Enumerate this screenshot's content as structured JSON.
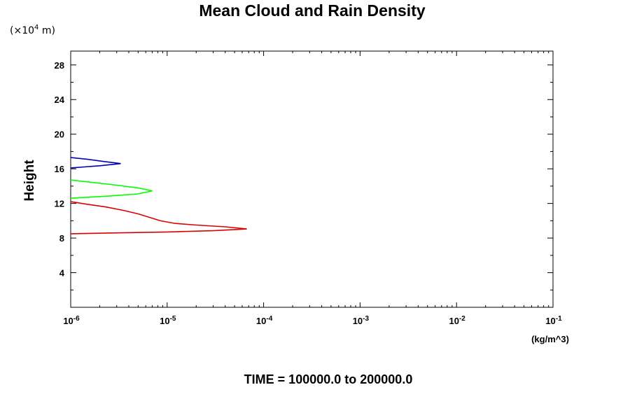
{
  "chart_data": {
    "type": "line",
    "title": "Mean Cloud and Rain Density",
    "ylabel": "Height",
    "y_unit_base": "(×10",
    "y_unit_exp": "4",
    "y_unit_tail": " m)",
    "x_unit": "(kg/m^3)",
    "footer": "TIME = 100000.0 to 200000.0",
    "x_scale": "log",
    "xlim": [
      1e-06,
      0.1
    ],
    "ylim": [
      0,
      29.6
    ],
    "x_ticks": [
      {
        "value": 1e-06,
        "base": "10",
        "exp": "-6"
      },
      {
        "value": 1e-05,
        "base": "10",
        "exp": "-5"
      },
      {
        "value": 0.0001,
        "base": "10",
        "exp": "-4"
      },
      {
        "value": 0.001,
        "base": "10",
        "exp": "-3"
      },
      {
        "value": 0.01,
        "base": "10",
        "exp": "-2"
      },
      {
        "value": 0.1,
        "base": "10",
        "exp": "-1"
      }
    ],
    "y_ticks": [
      {
        "value": 4,
        "label": "4"
      },
      {
        "value": 8,
        "label": "8"
      },
      {
        "value": 12,
        "label": "12"
      },
      {
        "value": 16,
        "label": "16"
      },
      {
        "value": 20,
        "label": "20"
      },
      {
        "value": 24,
        "label": "24"
      },
      {
        "value": 28,
        "label": "28"
      }
    ],
    "y_minor_ticks": [
      2,
      6,
      10,
      14,
      18,
      22,
      26
    ],
    "grid": false,
    "series": [
      {
        "color": "#dd0000",
        "points": [
          [
            1e-06,
            8.5
          ],
          [
            3e-06,
            8.6
          ],
          [
            1e-05,
            8.7
          ],
          [
            3e-05,
            8.85
          ],
          [
            6.7e-05,
            9.05
          ],
          [
            4e-05,
            9.3
          ],
          [
            2e-05,
            9.5
          ],
          [
            1.2e-05,
            9.7
          ],
          [
            8.5e-06,
            10.0
          ],
          [
            6.5e-06,
            10.4
          ],
          [
            5e-06,
            10.8
          ],
          [
            3.5e-06,
            11.2
          ],
          [
            2.3e-06,
            11.6
          ],
          [
            1.5e-06,
            11.9
          ],
          [
            1e-06,
            12.2
          ]
        ]
      },
      {
        "color": "#00ff00",
        "points": [
          [
            1e-06,
            12.6
          ],
          [
            2.5e-06,
            12.85
          ],
          [
            5e-06,
            13.1
          ],
          [
            7e-06,
            13.45
          ],
          [
            5e-06,
            13.8
          ],
          [
            2.8e-06,
            14.15
          ],
          [
            1.6e-06,
            14.45
          ],
          [
            1e-06,
            14.7
          ]
        ]
      },
      {
        "color": "#0000bb",
        "points": [
          [
            1e-06,
            16.1
          ],
          [
            2e-06,
            16.35
          ],
          [
            3.3e-06,
            16.6
          ],
          [
            2.2e-06,
            16.85
          ],
          [
            1.5e-06,
            17.1
          ],
          [
            1e-06,
            17.3
          ]
        ]
      }
    ]
  }
}
